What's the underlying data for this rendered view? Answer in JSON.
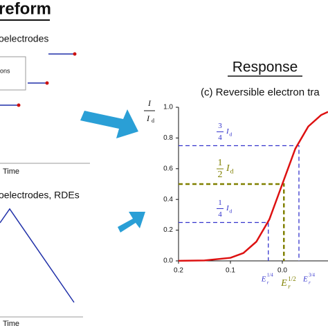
{
  "left_panel": {
    "title": "reform",
    "section1": "oelectrodes",
    "box_text": "ons",
    "time1": "Time",
    "section2": "oelectrodes, RDEs",
    "time2": "Time"
  },
  "right_panel": {
    "title": "Response"
  },
  "chart_data": {
    "type": "line",
    "title": "(c) Reversible electron tra",
    "y_label": {
      "top": "I",
      "bottom": "I",
      "subscript": "d"
    },
    "x": [
      0.2,
      0.15,
      0.1,
      0.075,
      0.05,
      0.025,
      0,
      -0.025,
      -0.05,
      -0.075,
      -0.088
    ],
    "series": [
      {
        "color": "#dd1111",
        "values": [
          0.0004,
          0.003,
          0.02,
          0.051,
          0.125,
          0.27,
          0.5,
          0.73,
          0.875,
          0.95,
          0.97
        ]
      }
    ],
    "xlim": [
      0.2,
      -0.088
    ],
    "ylim": [
      0,
      1
    ],
    "xticks": [
      0.2,
      0.1,
      {
        "value": 0,
        "label": "0.0"
      }
    ],
    "yticks": [
      {
        "value": 0,
        "label": "0.0"
      },
      0.2,
      0.4,
      0.6,
      0.8,
      {
        "value": 1,
        "label": "1.0"
      }
    ],
    "guides": [
      {
        "fraction": 0.75,
        "x": -0.032,
        "color": "#3333cc",
        "numerator": "3",
        "denominator": "4",
        "symbol": "I",
        "subscript": "d",
        "e_symbol": "E",
        "e_sub": "r",
        "e_sup": "3/4"
      },
      {
        "fraction": 0.5,
        "x": -0.003,
        "color": "#808000",
        "numerator": "1",
        "denominator": "2",
        "symbol": "I",
        "subscript": "d",
        "e_symbol": "E",
        "e_sub": "r",
        "e_sup": "1/2"
      },
      {
        "fraction": 0.25,
        "x": 0.027,
        "color": "#3333cc",
        "numerator": "1",
        "denominator": "4",
        "symbol": "I",
        "subscript": "d",
        "e_symbol": "E",
        "e_sub": "r",
        "e_sup": "1/4"
      }
    ]
  }
}
